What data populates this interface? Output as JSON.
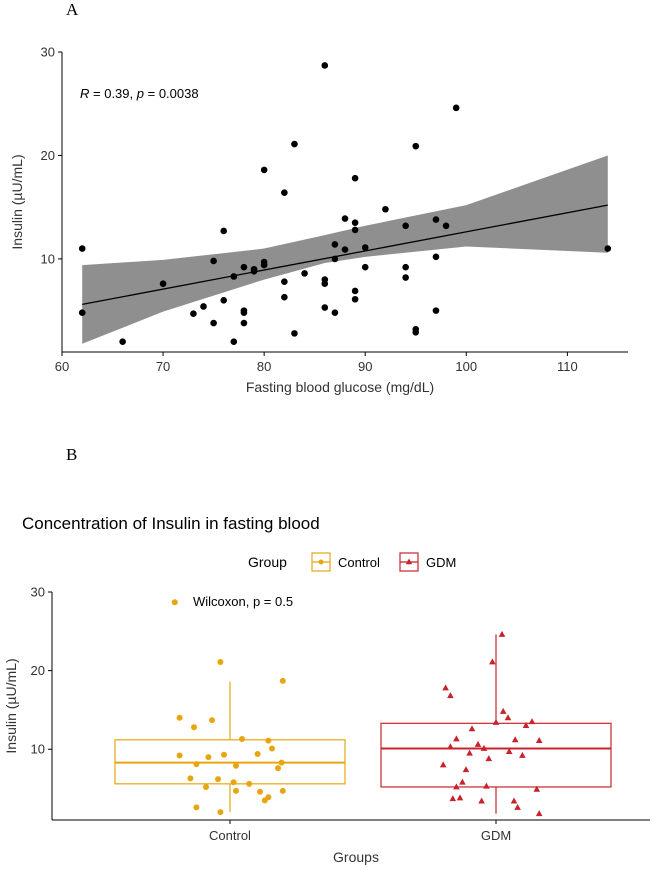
{
  "chart_data": [
    {
      "panel_label": "A",
      "type": "scatter",
      "xlabel": "Fasting blood glucose (mg/dL)",
      "ylabel": "Insulin (µU/mL)",
      "xlim": [
        60,
        116
      ],
      "ylim": [
        1,
        30
      ],
      "xticks": [
        60,
        70,
        80,
        90,
        100,
        110
      ],
      "yticks": [
        10,
        20,
        30
      ],
      "annotation": {
        "R": "0.39",
        "p": "0.0038"
      },
      "regression": {
        "x0": 62,
        "y0": 5.6,
        "x1": 114,
        "y1": 15.2
      },
      "confidence_band": {
        "x": [
          62,
          70,
          80,
          86,
          90,
          100,
          114
        ],
        "lower": [
          1.8,
          4.9,
          8.0,
          9.6,
          10.2,
          11.2,
          10.6
        ],
        "upper": [
          9.4,
          9.9,
          11.0,
          12.3,
          13.2,
          15.2,
          20.0
        ]
      },
      "points": [
        [
          62,
          11.0
        ],
        [
          62,
          4.8
        ],
        [
          66,
          2.0
        ],
        [
          70,
          7.6
        ],
        [
          73,
          4.7
        ],
        [
          74,
          5.4
        ],
        [
          75,
          9.8
        ],
        [
          75,
          3.8
        ],
        [
          76,
          12.7
        ],
        [
          76,
          6.0
        ],
        [
          77,
          2.0
        ],
        [
          77,
          8.3
        ],
        [
          78,
          9.2
        ],
        [
          78,
          5.0
        ],
        [
          78,
          4.8
        ],
        [
          78,
          3.8
        ],
        [
          79,
          8.8
        ],
        [
          79,
          9.0
        ],
        [
          80,
          18.6
        ],
        [
          80,
          9.7
        ],
        [
          80,
          9.4
        ],
        [
          82,
          16.4
        ],
        [
          82,
          7.8
        ],
        [
          82,
          6.3
        ],
        [
          83,
          21.1
        ],
        [
          83,
          2.8
        ],
        [
          84,
          8.6
        ],
        [
          86,
          28.7
        ],
        [
          86,
          8.0
        ],
        [
          86,
          7.6
        ],
        [
          86,
          5.3
        ],
        [
          87,
          11.4
        ],
        [
          87,
          10.0
        ],
        [
          87,
          4.8
        ],
        [
          88,
          13.9
        ],
        [
          88,
          10.9
        ],
        [
          89,
          17.8
        ],
        [
          89,
          13.5
        ],
        [
          89,
          12.8
        ],
        [
          89,
          6.9
        ],
        [
          89,
          6.1
        ],
        [
          90,
          11.1
        ],
        [
          90,
          9.2
        ],
        [
          92,
          14.8
        ],
        [
          94,
          13.2
        ],
        [
          94,
          9.2
        ],
        [
          94,
          8.2
        ],
        [
          95,
          20.9
        ],
        [
          95,
          3.2
        ],
        [
          95,
          2.9
        ],
        [
          97,
          13.8
        ],
        [
          97,
          10.2
        ],
        [
          97,
          5.0
        ],
        [
          98,
          13.2
        ],
        [
          99,
          24.6
        ],
        [
          114,
          11.0
        ]
      ]
    },
    {
      "panel_label": "B",
      "type": "box",
      "title": "Concentration of Insulin in fasting blood",
      "xlabel": "Groups",
      "ylabel": "Insulin (µU/mL)",
      "ylim": [
        1,
        30
      ],
      "yticks": [
        10,
        20,
        30
      ],
      "legend": {
        "title": "Group",
        "placement": "top"
      },
      "annotation": "Wilcoxon, p = 0.5",
      "categories": [
        "Control",
        "GDM"
      ],
      "series": [
        {
          "name": "Control",
          "color": "#E7A610",
          "marker": "circle",
          "box": {
            "q1": 5.6,
            "median": 8.3,
            "q3": 11.2,
            "whisker_low": 2.0,
            "whisker_high": 18.6
          },
          "points": [
            [
              -0.46,
              28.7
            ],
            [
              -0.08,
              21.1
            ],
            [
              0.44,
              18.7
            ],
            [
              -0.42,
              14.0
            ],
            [
              -0.15,
              13.7
            ],
            [
              -0.3,
              12.8
            ],
            [
              0.32,
              11.1
            ],
            [
              0.1,
              11.3
            ],
            [
              -0.42,
              9.2
            ],
            [
              -0.18,
              9.0
            ],
            [
              -0.05,
              9.3
            ],
            [
              0.23,
              9.4
            ],
            [
              0.35,
              10.1
            ],
            [
              0.43,
              8.3
            ],
            [
              -0.28,
              8.1
            ],
            [
              0.05,
              7.9
            ],
            [
              0.4,
              7.6
            ],
            [
              -0.33,
              6.3
            ],
            [
              -0.1,
              6.2
            ],
            [
              0.03,
              5.8
            ],
            [
              -0.2,
              5.2
            ],
            [
              0.16,
              5.6
            ],
            [
              0.05,
              4.7
            ],
            [
              0.25,
              4.6
            ],
            [
              0.44,
              4.7
            ],
            [
              0.32,
              3.9
            ],
            [
              0.29,
              3.5
            ],
            [
              -0.28,
              2.6
            ],
            [
              -0.08,
              2.0
            ]
          ]
        },
        {
          "name": "GDM",
          "color": "#C8232C",
          "marker": "triangle",
          "box": {
            "q1": 5.2,
            "median": 10.1,
            "q3": 13.3,
            "whisker_low": 1.8,
            "whisker_high": 24.6
          },
          "points": [
            [
              0.05,
              24.6
            ],
            [
              -0.03,
              21.1
            ],
            [
              -0.42,
              17.8
            ],
            [
              -0.38,
              16.8
            ],
            [
              0.06,
              14.8
            ],
            [
              0.1,
              14.0
            ],
            [
              0.0,
              13.4
            ],
            [
              0.3,
              13.5
            ],
            [
              0.25,
              13.0
            ],
            [
              -0.2,
              12.6
            ],
            [
              -0.33,
              11.3
            ],
            [
              0.16,
              11.2
            ],
            [
              0.36,
              11.1
            ],
            [
              -0.15,
              10.6
            ],
            [
              -0.1,
              10.1
            ],
            [
              -0.38,
              10.3
            ],
            [
              -0.22,
              9.5
            ],
            [
              0.11,
              9.7
            ],
            [
              -0.06,
              8.8
            ],
            [
              0.22,
              9.2
            ],
            [
              -0.44,
              8.0
            ],
            [
              -0.25,
              7.4
            ],
            [
              -0.28,
              5.8
            ],
            [
              -0.33,
              5.2
            ],
            [
              -0.08,
              5.3
            ],
            [
              0.34,
              4.9
            ],
            [
              -0.3,
              3.8
            ],
            [
              -0.12,
              3.4
            ],
            [
              0.15,
              3.4
            ],
            [
              -0.36,
              3.7
            ],
            [
              0.18,
              2.6
            ],
            [
              0.36,
              1.8
            ]
          ]
        }
      ]
    }
  ]
}
